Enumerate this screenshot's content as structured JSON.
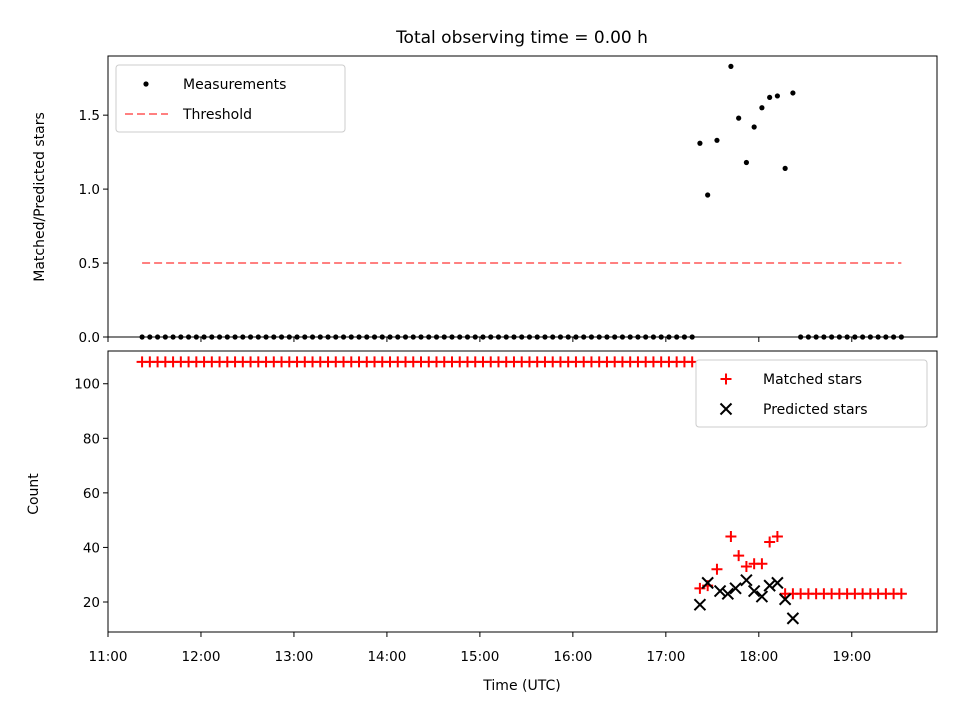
{
  "chart_data": [
    {
      "type": "scatter",
      "title": "Total observing time = 0.00 h",
      "xlabel": "",
      "ylabel": "Matched/Predicted stars",
      "xlim": [
        "11:00",
        "19:55"
      ],
      "ylim": [
        0,
        1.9
      ],
      "y_ticks": [
        "0.0",
        "0.5",
        "1.0",
        "1.5"
      ],
      "grid": false,
      "legend_position": "top-left",
      "series": [
        {
          "name": "Measurements",
          "color": "#000000",
          "marker": "dot",
          "points": [
            [
              "11:22",
              0
            ],
            [
              "11:27",
              0
            ],
            [
              "11:32",
              0
            ],
            [
              "11:37",
              0
            ],
            [
              "11:42",
              0
            ],
            [
              "11:47",
              0
            ],
            [
              "11:52",
              0
            ],
            [
              "11:57",
              0
            ],
            [
              "12:02",
              0
            ],
            [
              "12:07",
              0
            ],
            [
              "12:12",
              0
            ],
            [
              "12:17",
              0
            ],
            [
              "12:22",
              0
            ],
            [
              "12:27",
              0
            ],
            [
              "12:32",
              0
            ],
            [
              "12:37",
              0
            ],
            [
              "12:42",
              0
            ],
            [
              "12:47",
              0
            ],
            [
              "12:52",
              0
            ],
            [
              "12:57",
              0
            ],
            [
              "13:02",
              0
            ],
            [
              "13:07",
              0
            ],
            [
              "13:12",
              0
            ],
            [
              "13:17",
              0
            ],
            [
              "13:22",
              0
            ],
            [
              "13:27",
              0
            ],
            [
              "13:32",
              0
            ],
            [
              "13:37",
              0
            ],
            [
              "13:42",
              0
            ],
            [
              "13:47",
              0
            ],
            [
              "13:52",
              0
            ],
            [
              "13:57",
              0
            ],
            [
              "14:02",
              0
            ],
            [
              "14:07",
              0
            ],
            [
              "14:12",
              0
            ],
            [
              "14:17",
              0
            ],
            [
              "14:22",
              0
            ],
            [
              "14:27",
              0
            ],
            [
              "14:32",
              0
            ],
            [
              "14:37",
              0
            ],
            [
              "14:42",
              0
            ],
            [
              "14:47",
              0
            ],
            [
              "14:52",
              0
            ],
            [
              "14:57",
              0
            ],
            [
              "15:02",
              0
            ],
            [
              "15:07",
              0
            ],
            [
              "15:12",
              0
            ],
            [
              "15:17",
              0
            ],
            [
              "15:22",
              0
            ],
            [
              "15:27",
              0
            ],
            [
              "15:32",
              0
            ],
            [
              "15:37",
              0
            ],
            [
              "15:42",
              0
            ],
            [
              "15:47",
              0
            ],
            [
              "15:52",
              0
            ],
            [
              "15:57",
              0
            ],
            [
              "16:02",
              0
            ],
            [
              "16:07",
              0
            ],
            [
              "16:12",
              0
            ],
            [
              "16:17",
              0
            ],
            [
              "16:22",
              0
            ],
            [
              "16:27",
              0
            ],
            [
              "16:32",
              0
            ],
            [
              "16:37",
              0
            ],
            [
              "16:42",
              0
            ],
            [
              "16:47",
              0
            ],
            [
              "16:52",
              0
            ],
            [
              "16:57",
              0
            ],
            [
              "17:02",
              0
            ],
            [
              "17:07",
              0
            ],
            [
              "17:12",
              0
            ],
            [
              "17:17",
              0
            ],
            [
              "17:22",
              1.31
            ],
            [
              "17:27",
              0.96
            ],
            [
              "17:33",
              1.33
            ],
            [
              "17:42",
              1.83
            ],
            [
              "17:47",
              1.48
            ],
            [
              "17:52",
              1.18
            ],
            [
              "17:57",
              1.42
            ],
            [
              "18:02",
              1.55
            ],
            [
              "18:07",
              1.62
            ],
            [
              "18:12",
              1.63
            ],
            [
              "18:17",
              1.14
            ],
            [
              "18:22",
              1.65
            ],
            [
              "18:27",
              0
            ],
            [
              "18:32",
              0
            ],
            [
              "18:37",
              0
            ],
            [
              "18:42",
              0
            ],
            [
              "18:47",
              0
            ],
            [
              "18:52",
              0
            ],
            [
              "18:57",
              0
            ],
            [
              "19:02",
              0
            ],
            [
              "19:07",
              0
            ],
            [
              "19:12",
              0
            ],
            [
              "19:17",
              0
            ],
            [
              "19:22",
              0
            ],
            [
              "19:27",
              0
            ],
            [
              "19:32",
              0
            ]
          ]
        },
        {
          "name": "Threshold",
          "color": "#ff8080",
          "style": "dashed-line",
          "points": [
            [
              "11:22",
              0.5
            ],
            [
              "19:32",
              0.5
            ]
          ]
        }
      ]
    },
    {
      "type": "scatter",
      "title": "",
      "xlabel": "Time (UTC)",
      "ylabel": "Count",
      "xlim": [
        "11:00",
        "19:55"
      ],
      "ylim": [
        9,
        112
      ],
      "x_ticks": [
        "11:00",
        "12:00",
        "13:00",
        "14:00",
        "15:00",
        "16:00",
        "17:00",
        "18:00",
        "19:00"
      ],
      "y_ticks": [
        "20",
        "40",
        "60",
        "80",
        "100"
      ],
      "grid": false,
      "legend_position": "top-right",
      "series": [
        {
          "name": "Matched stars",
          "color": "#ff0000",
          "marker": "plus",
          "points": [
            [
              "11:22",
              108
            ],
            [
              "11:27",
              108
            ],
            [
              "11:32",
              108
            ],
            [
              "11:37",
              108
            ],
            [
              "11:42",
              108
            ],
            [
              "11:47",
              108
            ],
            [
              "11:52",
              108
            ],
            [
              "11:57",
              108
            ],
            [
              "12:02",
              108
            ],
            [
              "12:07",
              108
            ],
            [
              "12:12",
              108
            ],
            [
              "12:17",
              108
            ],
            [
              "12:22",
              108
            ],
            [
              "12:27",
              108
            ],
            [
              "12:32",
              108
            ],
            [
              "12:37",
              108
            ],
            [
              "12:42",
              108
            ],
            [
              "12:47",
              108
            ],
            [
              "12:52",
              108
            ],
            [
              "12:57",
              108
            ],
            [
              "13:02",
              108
            ],
            [
              "13:07",
              108
            ],
            [
              "13:12",
              108
            ],
            [
              "13:17",
              108
            ],
            [
              "13:22",
              108
            ],
            [
              "13:27",
              108
            ],
            [
              "13:32",
              108
            ],
            [
              "13:37",
              108
            ],
            [
              "13:42",
              108
            ],
            [
              "13:47",
              108
            ],
            [
              "13:52",
              108
            ],
            [
              "13:57",
              108
            ],
            [
              "14:02",
              108
            ],
            [
              "14:07",
              108
            ],
            [
              "14:12",
              108
            ],
            [
              "14:17",
              108
            ],
            [
              "14:22",
              108
            ],
            [
              "14:27",
              108
            ],
            [
              "14:32",
              108
            ],
            [
              "14:37",
              108
            ],
            [
              "14:42",
              108
            ],
            [
              "14:47",
              108
            ],
            [
              "14:52",
              108
            ],
            [
              "14:57",
              108
            ],
            [
              "15:02",
              108
            ],
            [
              "15:07",
              108
            ],
            [
              "15:12",
              108
            ],
            [
              "15:17",
              108
            ],
            [
              "15:22",
              108
            ],
            [
              "15:27",
              108
            ],
            [
              "15:32",
              108
            ],
            [
              "15:37",
              108
            ],
            [
              "15:42",
              108
            ],
            [
              "15:47",
              108
            ],
            [
              "15:52",
              108
            ],
            [
              "15:57",
              108
            ],
            [
              "16:02",
              108
            ],
            [
              "16:07",
              108
            ],
            [
              "16:12",
              108
            ],
            [
              "16:17",
              108
            ],
            [
              "16:22",
              108
            ],
            [
              "16:27",
              108
            ],
            [
              "16:32",
              108
            ],
            [
              "16:37",
              108
            ],
            [
              "16:42",
              108
            ],
            [
              "16:47",
              108
            ],
            [
              "16:52",
              108
            ],
            [
              "16:57",
              108
            ],
            [
              "17:02",
              108
            ],
            [
              "17:07",
              108
            ],
            [
              "17:12",
              108
            ],
            [
              "17:17",
              108
            ],
            [
              "17:22",
              25
            ],
            [
              "17:27",
              26
            ],
            [
              "17:33",
              32
            ],
            [
              "17:42",
              44
            ],
            [
              "17:47",
              37
            ],
            [
              "17:52",
              33
            ],
            [
              "17:57",
              34
            ],
            [
              "18:02",
              34
            ],
            [
              "18:07",
              42
            ],
            [
              "18:12",
              44
            ],
            [
              "18:17",
              23
            ],
            [
              "18:22",
              23
            ],
            [
              "18:27",
              23
            ],
            [
              "18:32",
              23
            ],
            [
              "18:37",
              23
            ],
            [
              "18:42",
              23
            ],
            [
              "18:47",
              23
            ],
            [
              "18:52",
              23
            ],
            [
              "18:57",
              23
            ],
            [
              "19:02",
              23
            ],
            [
              "19:07",
              23
            ],
            [
              "19:12",
              23
            ],
            [
              "19:17",
              23
            ],
            [
              "19:22",
              23
            ],
            [
              "19:27",
              23
            ],
            [
              "19:32",
              23
            ]
          ]
        },
        {
          "name": "Predicted stars",
          "color": "#000000",
          "marker": "x",
          "points": [
            [
              "17:22",
              19
            ],
            [
              "17:27",
              27
            ],
            [
              "17:35",
              24
            ],
            [
              "17:40",
              23
            ],
            [
              "17:45",
              25
            ],
            [
              "17:52",
              28
            ],
            [
              "17:57",
              24
            ],
            [
              "18:02",
              22
            ],
            [
              "18:07",
              26
            ],
            [
              "18:12",
              27
            ],
            [
              "18:17",
              21
            ],
            [
              "18:22",
              14
            ]
          ]
        }
      ]
    }
  ]
}
